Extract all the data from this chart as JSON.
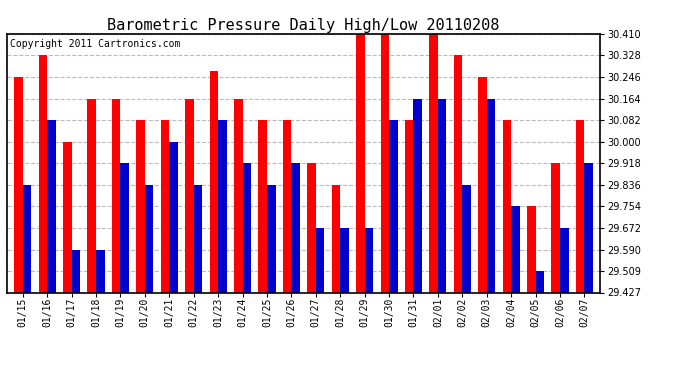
{
  "title": "Barometric Pressure Daily High/Low 20110208",
  "copyright": "Copyright 2011 Cartronics.com",
  "dates": [
    "01/15",
    "01/16",
    "01/17",
    "01/18",
    "01/19",
    "01/20",
    "01/21",
    "01/22",
    "01/23",
    "01/24",
    "01/25",
    "01/26",
    "01/27",
    "01/28",
    "01/29",
    "01/30",
    "01/31",
    "02/01",
    "02/02",
    "02/03",
    "02/04",
    "02/05",
    "02/06",
    "02/07"
  ],
  "highs": [
    30.246,
    30.328,
    30.0,
    30.164,
    30.164,
    30.082,
    30.082,
    30.164,
    30.27,
    30.164,
    30.082,
    30.082,
    29.918,
    29.836,
    30.41,
    30.41,
    30.082,
    30.41,
    30.328,
    30.246,
    30.082,
    29.754,
    29.918,
    30.082
  ],
  "lows": [
    29.836,
    30.082,
    29.59,
    29.59,
    29.918,
    29.836,
    30.0,
    29.836,
    30.082,
    29.918,
    29.836,
    29.918,
    29.672,
    29.672,
    29.672,
    30.082,
    30.164,
    30.164,
    29.836,
    30.164,
    29.754,
    29.509,
    29.672,
    29.918
  ],
  "ymin": 29.427,
  "ymax": 30.41,
  "yticks": [
    29.427,
    29.509,
    29.59,
    29.672,
    29.754,
    29.836,
    29.918,
    30.0,
    30.082,
    30.164,
    30.246,
    30.328,
    30.41
  ],
  "high_color": "#ff0000",
  "low_color": "#0000cc",
  "background_color": "#ffffff",
  "grid_color": "#bbbbbb",
  "title_fontsize": 11,
  "copyright_fontsize": 7,
  "bar_width": 0.35
}
